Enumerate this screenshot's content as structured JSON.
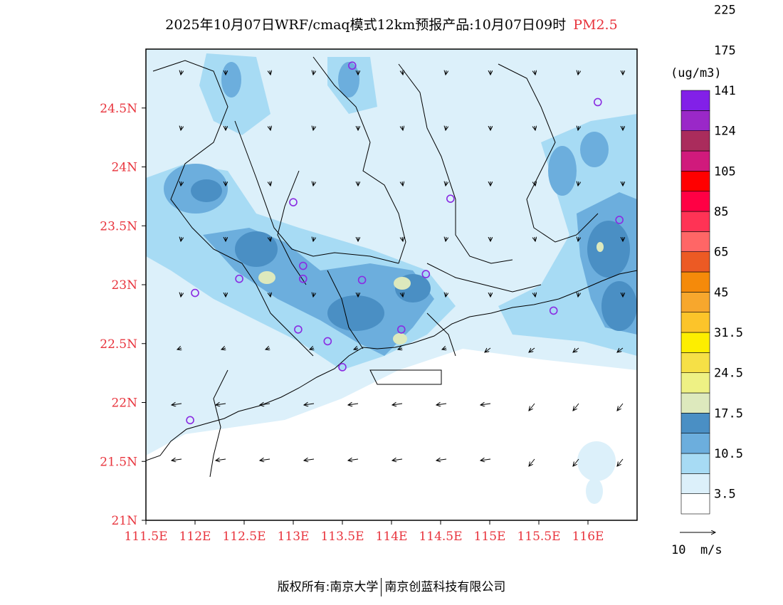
{
  "title": {
    "main": "2025年10月07日WRF/cmaq模式12km预报产品:10月07日09时",
    "variable": "PM2.5"
  },
  "footer": {
    "left": "版权所有:南京大学",
    "right": "南京创蓝科技有限公司"
  },
  "map": {
    "lat_labels": [
      "24.5N",
      "24N",
      "23.5N",
      "23N",
      "22.5N",
      "22N",
      "21.5N",
      "21N"
    ],
    "lon_labels": [
      "111.5E",
      "112E",
      "112.5E",
      "113E",
      "113.5E",
      "114E",
      "114.5E",
      "115E",
      "115.5E",
      "116E"
    ],
    "lon_range": [
      111.5,
      116.5
    ],
    "lat_range": [
      21,
      25
    ],
    "label_color": "#e8343d",
    "station_color": "#8a2be2",
    "stations": [
      [
        113.6,
        24.86
      ],
      [
        116.1,
        24.55
      ],
      [
        113.0,
        23.7
      ],
      [
        114.6,
        23.73
      ],
      [
        116.32,
        23.55
      ],
      [
        112.45,
        23.05
      ],
      [
        113.1,
        23.16
      ],
      [
        113.1,
        23.05
      ],
      [
        113.7,
        23.04
      ],
      [
        114.35,
        23.09
      ],
      [
        112.0,
        22.93
      ],
      [
        115.65,
        22.78
      ],
      [
        113.05,
        22.62
      ],
      [
        113.35,
        22.52
      ],
      [
        114.1,
        22.62
      ],
      [
        113.5,
        22.3
      ],
      [
        111.95,
        21.85
      ]
    ]
  },
  "legend": {
    "unit": "(ug/m3)",
    "colors": [
      "#ffffff",
      "#dcf0fa",
      "#a7dbf4",
      "#6caedd",
      "#4a8fc4",
      "#dde9bd",
      "#eef184",
      "#f6e046",
      "#fdee00",
      "#fcc42a",
      "#f7a72d",
      "#f58a0a",
      "#ec5a24",
      "#ff6666",
      "#ff3355",
      "#ff0044",
      "#ff0000",
      "#d01a7c",
      "#aa2c5c",
      "#9a28c8",
      "#8220e8"
    ],
    "labels": [
      "3.5",
      "10.5",
      "17.5",
      "24.5",
      "31.5",
      "45",
      "65",
      "85",
      "105",
      "124",
      "141",
      "175",
      "225"
    ],
    "wind_arrow_label": "10  m/s"
  }
}
